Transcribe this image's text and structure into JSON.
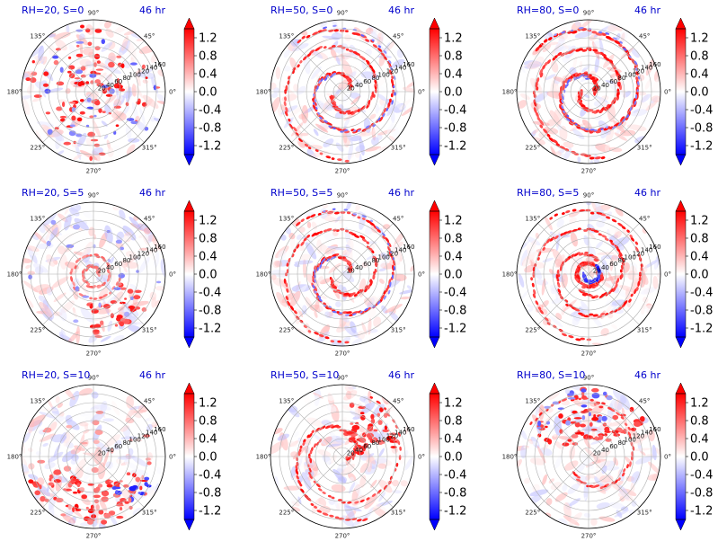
{
  "chart_data": {
    "type": "polar-filled-contour",
    "panels": [
      {
        "title": "RH=20, S=0",
        "time": "46 hr",
        "pattern": "scattered"
      },
      {
        "title": "RH=50, S=0",
        "time": "46 hr",
        "pattern": "spiral"
      },
      {
        "title": "RH=80, S=0",
        "time": "46 hr",
        "pattern": "spiral-strong"
      },
      {
        "title": "RH=20, S=5",
        "time": "46 hr",
        "pattern": "weak-ring"
      },
      {
        "title": "RH=50, S=5",
        "time": "46 hr",
        "pattern": "spiral"
      },
      {
        "title": "RH=80, S=5",
        "time": "46 hr",
        "pattern": "eye-ring"
      },
      {
        "title": "RH=20, S=10",
        "time": "46 hr",
        "pattern": "southern-band"
      },
      {
        "title": "RH=50, S=10",
        "time": "46 hr",
        "pattern": "northeast-band"
      },
      {
        "title": "RH=80, S=10",
        "time": "46 hr",
        "pattern": "northern-bands"
      }
    ],
    "angle_ticks": [
      "0°",
      "45°",
      "90°",
      "135°",
      "180°",
      "225°",
      "270°",
      "315°"
    ],
    "angle_values": [
      0,
      45,
      90,
      135,
      180,
      225,
      270,
      315
    ],
    "radial_ticks": [
      "20",
      "40",
      "60",
      "80",
      "100",
      "120",
      "140",
      "160"
    ],
    "radial_values": [
      20,
      40,
      60,
      80,
      100,
      120,
      140,
      160
    ],
    "radial_label_angle": 22.5,
    "rmax": 160,
    "colorbar": {
      "colormap": "bwr",
      "vmin": -1.4,
      "vmax": 1.4,
      "extend": "both",
      "ticks": [
        "-1.2",
        "-0.8",
        "-0.4",
        "0.0",
        "0.4",
        "0.8",
        "1.2"
      ],
      "tick_values": [
        -1.2,
        -0.8,
        -0.4,
        0.0,
        0.4,
        0.8,
        1.2
      ]
    },
    "grid": true
  }
}
